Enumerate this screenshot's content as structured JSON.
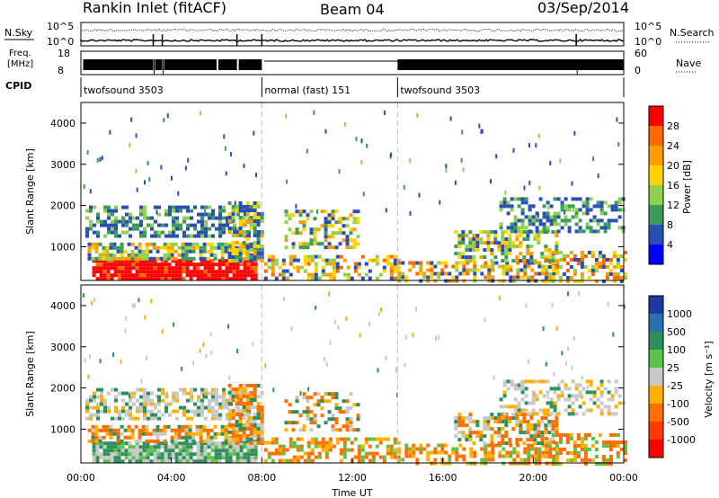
{
  "header": {
    "title": "Rankin Inlet (fitACF)",
    "beam": "Beam 04",
    "date": "03/Sep/2014"
  },
  "top_panels": {
    "nsky_label": "N.Sky",
    "nsky_ticks": [
      "10^5",
      "10^0"
    ],
    "nsearch_label": "N.Search",
    "nsearch_ticks": [
      "10^5",
      "10^0"
    ],
    "freq_label_line1": "Freq.",
    "freq_label_line2": "[MHz]",
    "freq_ticks": [
      "18",
      "8"
    ],
    "nave_label": "Nave",
    "nave_ticks": [
      "60",
      "0"
    ],
    "cpid_label": "CPID",
    "cpid_segments": [
      {
        "label": "twofsound 3503",
        "start_hour": 0,
        "end_hour": 8
      },
      {
        "label": "normal (fast) 151",
        "start_hour": 8,
        "end_hour": 14
      },
      {
        "label": "twofsound 3503",
        "start_hour": 14,
        "end_hour": 24
      }
    ]
  },
  "chart_data": [
    {
      "type": "heatmap",
      "ylabel": "Slant Range [km]",
      "ylim": [
        180,
        4500
      ],
      "yticks": [
        1000,
        2000,
        3000,
        4000
      ],
      "xlim": [
        0,
        24
      ],
      "colorbar_label": "Power [dB]",
      "colorbar_ticks": [
        "28",
        "24",
        "20",
        "16",
        "12",
        "8",
        "4"
      ],
      "colorbar_colors": [
        "#ff0000",
        "#ff6a00",
        "#ff9d00",
        "#ffd400",
        "#8fd14f",
        "#3c9a5a",
        "#2a4fb3",
        "#0000ff"
      ],
      "mode_change_lines_hours": [
        8,
        14
      ]
    },
    {
      "type": "heatmap",
      "ylabel": "Slant Range [km]",
      "xlabel": "Time UT",
      "ylim": [
        180,
        4500
      ],
      "yticks": [
        1000,
        2000,
        3000,
        4000
      ],
      "xlim": [
        0,
        24
      ],
      "xticks": [
        "00:00",
        "04:00",
        "08:00",
        "12:00",
        "16:00",
        "20:00",
        "00:00"
      ],
      "colorbar_label": "Velocity [m s⁻¹]",
      "colorbar_ticks": [
        "1000",
        "500",
        "100",
        "25",
        "-25",
        "-100",
        "-500",
        "-1000"
      ],
      "colorbar_colors": [
        "#1f3a9e",
        "#2e6fb0",
        "#2e8f5a",
        "#5cc24a",
        "#c8c8c8",
        "#ffb000",
        "#ff7000",
        "#ff3c00",
        "#ff0000"
      ],
      "mode_change_lines_hours": [
        8,
        14
      ]
    }
  ]
}
